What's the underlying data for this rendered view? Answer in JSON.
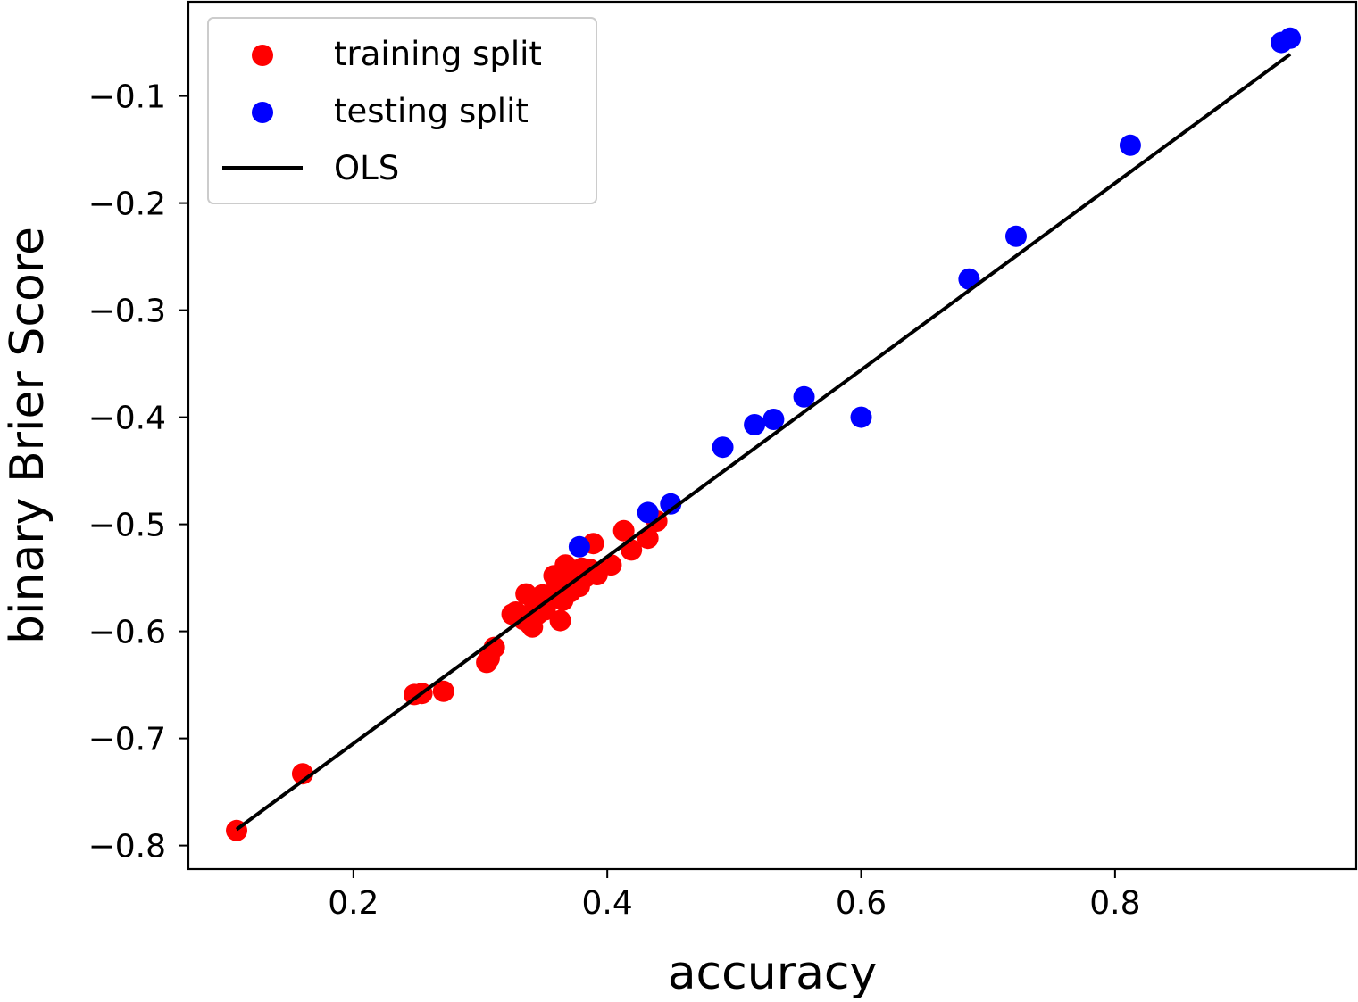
{
  "chart_data": {
    "type": "scatter",
    "xlabel": "accuracy",
    "ylabel": "binary Brier Score",
    "xlim": [
      0.07,
      0.99
    ],
    "ylim": [
      -0.822,
      -0.012
    ],
    "xticks": [
      0.2,
      0.4,
      0.6,
      0.8
    ],
    "xtick_labels": [
      "0.2",
      "0.4",
      "0.6",
      "0.8"
    ],
    "yticks": [
      -0.1,
      -0.2,
      -0.3,
      -0.4,
      -0.5,
      -0.6,
      -0.7,
      -0.8
    ],
    "ytick_labels": [
      "−0.1",
      "−0.2",
      "−0.3",
      "−0.4",
      "−0.5",
      "−0.6",
      "−0.7",
      "−0.8"
    ],
    "grid": false,
    "legend_position": "top-left",
    "series": [
      {
        "name": "training split",
        "kind": "scatter",
        "color": "#ff0000",
        "points": [
          [
            0.108,
            -0.786
          ],
          [
            0.16,
            -0.733
          ],
          [
            0.248,
            -0.659
          ],
          [
            0.254,
            -0.658
          ],
          [
            0.271,
            -0.656
          ],
          [
            0.305,
            -0.629
          ],
          [
            0.307,
            -0.625
          ],
          [
            0.311,
            -0.615
          ],
          [
            0.325,
            -0.584
          ],
          [
            0.328,
            -0.582
          ],
          [
            0.334,
            -0.589
          ],
          [
            0.336,
            -0.565
          ],
          [
            0.339,
            -0.593
          ],
          [
            0.341,
            -0.596
          ],
          [
            0.343,
            -0.575
          ],
          [
            0.345,
            -0.584
          ],
          [
            0.347,
            -0.571
          ],
          [
            0.349,
            -0.566
          ],
          [
            0.351,
            -0.58
          ],
          [
            0.353,
            -0.572
          ],
          [
            0.356,
            -0.567
          ],
          [
            0.358,
            -0.548
          ],
          [
            0.36,
            -0.56
          ],
          [
            0.362,
            -0.551
          ],
          [
            0.363,
            -0.59
          ],
          [
            0.365,
            -0.571
          ],
          [
            0.367,
            -0.538
          ],
          [
            0.369,
            -0.546
          ],
          [
            0.371,
            -0.563
          ],
          [
            0.373,
            -0.555
          ],
          [
            0.376,
            -0.552
          ],
          [
            0.378,
            -0.558
          ],
          [
            0.38,
            -0.541
          ],
          [
            0.383,
            -0.549
          ],
          [
            0.386,
            -0.542
          ],
          [
            0.389,
            -0.518
          ],
          [
            0.392,
            -0.547
          ],
          [
            0.403,
            -0.538
          ],
          [
            0.413,
            -0.506
          ],
          [
            0.419,
            -0.524
          ],
          [
            0.432,
            -0.513
          ],
          [
            0.439,
            -0.497
          ]
        ]
      },
      {
        "name": "testing split",
        "kind": "scatter",
        "color": "#0000ff",
        "points": [
          [
            0.378,
            -0.521
          ],
          [
            0.432,
            -0.489
          ],
          [
            0.45,
            -0.481
          ],
          [
            0.491,
            -0.428
          ],
          [
            0.516,
            -0.407
          ],
          [
            0.531,
            -0.402
          ],
          [
            0.555,
            -0.381
          ],
          [
            0.6,
            -0.4
          ],
          [
            0.685,
            -0.271
          ],
          [
            0.722,
            -0.231
          ],
          [
            0.812,
            -0.146
          ],
          [
            0.931,
            -0.05
          ],
          [
            0.938,
            -0.046
          ]
        ]
      },
      {
        "name": "OLS",
        "kind": "line",
        "color": "#000000",
        "points": [
          [
            0.108,
            -0.785
          ],
          [
            0.938,
            -0.061
          ]
        ]
      }
    ]
  }
}
